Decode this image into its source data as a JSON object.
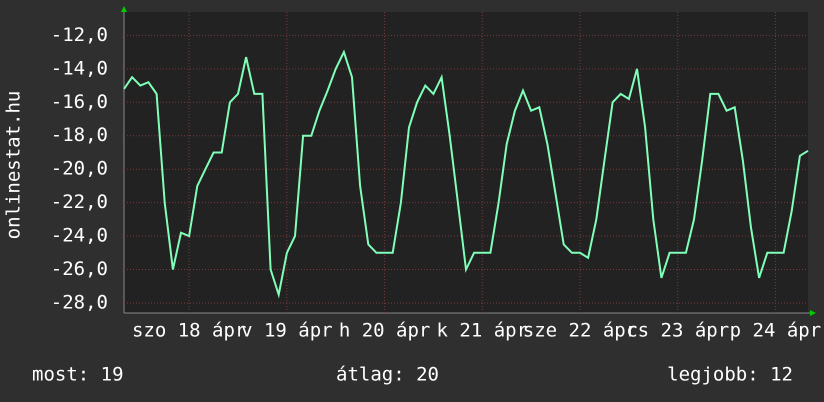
{
  "chart_data": {
    "type": "line",
    "ylabel": "onlinestat.hu",
    "categories": [
      null,
      null,
      null,
      null,
      null,
      null,
      null,
      null,
      "szo 18 ápr",
      null,
      null,
      null,
      null,
      null,
      null,
      null,
      null,
      null,
      null,
      null,
      "v 19 ápr",
      null,
      null,
      null,
      null,
      null,
      null,
      null,
      null,
      null,
      null,
      null,
      "h 20 ápr",
      null,
      null,
      null,
      null,
      null,
      null,
      null,
      null,
      null,
      null,
      null,
      "k 21 ápr",
      null,
      null,
      null,
      null,
      null,
      null,
      null,
      null,
      null,
      null,
      null,
      "sze 22 ápr",
      null,
      null,
      null,
      null,
      null,
      null,
      null,
      null,
      null,
      null,
      null,
      "cs 23 ápr",
      null,
      null,
      null,
      null,
      null,
      null,
      null,
      null,
      null,
      null,
      null,
      "p 24 ápr",
      null,
      null,
      null,
      null
    ],
    "values": [
      -15.2,
      -14.5,
      -15,
      -14.8,
      -15.5,
      -22,
      -26,
      -23.8,
      -24,
      -21,
      -20,
      -19,
      -19,
      -16,
      -15.5,
      -13.3,
      -15.5,
      -15.5,
      -26,
      -27.5,
      -25,
      -24,
      -18,
      -18,
      -16.5,
      -15.3,
      -14,
      -13,
      -14.5,
      -21,
      -24.5,
      -25,
      -25,
      -25,
      -22,
      -17.5,
      -16,
      -15,
      -15.5,
      -14.5,
      -18,
      -22,
      -26,
      -25,
      -25,
      -25,
      -22,
      -18.5,
      -16.5,
      -15.3,
      -16.5,
      -16.3,
      -18.5,
      -21.5,
      -24.5,
      -25,
      -25,
      -25.3,
      -23,
      -19.5,
      -16,
      -15.5,
      -15.8,
      -14,
      -17.5,
      -23,
      -26.5,
      -25,
      -25,
      -25,
      -23,
      -19.5,
      -15.5,
      -15.5,
      -16.5,
      -16.3,
      -19.5,
      -23.5,
      -26.5,
      -25,
      -25,
      -25,
      -22.5,
      -19.2,
      -18.9
    ],
    "color": "#80ffb8",
    "ylim": [
      -28.6,
      -10.6
    ],
    "yticks": [
      {
        "value": -28,
        "label": "-28,0"
      },
      {
        "value": -26,
        "label": "-26,0"
      },
      {
        "value": -24,
        "label": "-24,0"
      },
      {
        "value": -22,
        "label": "-22,0"
      },
      {
        "value": -20,
        "label": "-20,0"
      },
      {
        "value": -18,
        "label": "-18,0"
      },
      {
        "value": -16,
        "label": "-16,0"
      },
      {
        "value": -14,
        "label": "-14,0"
      },
      {
        "value": -12,
        "label": "-12,0"
      }
    ],
    "grid": true,
    "stats": [
      "most: 19",
      "átlag: 20",
      "legjobb: 12"
    ]
  }
}
